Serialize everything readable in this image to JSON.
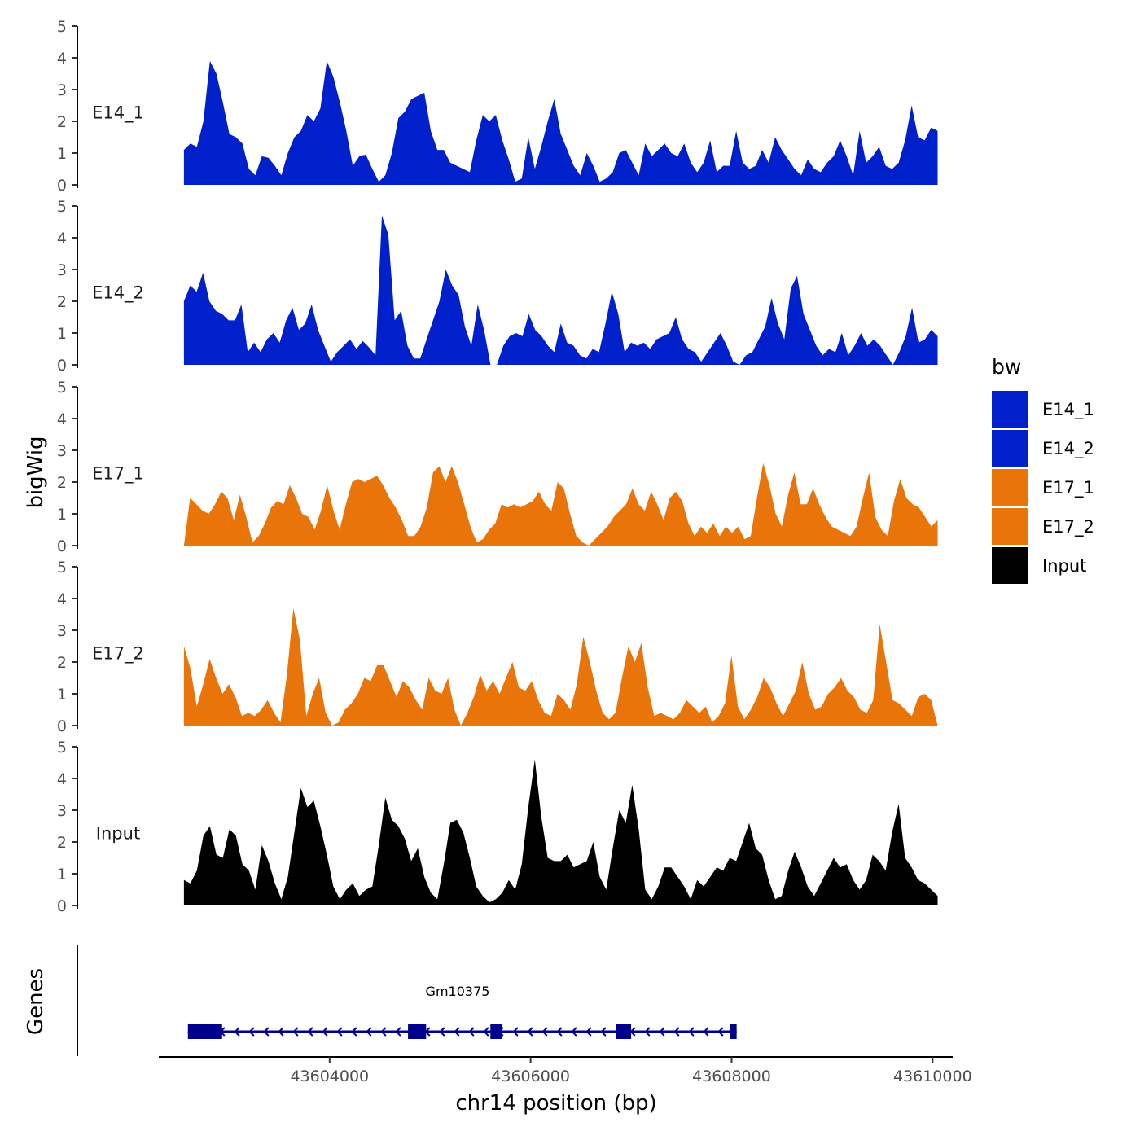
{
  "chart_data": {
    "type": "area",
    "xlabel": "chr14 position (bp)",
    "ylabel": "bigWig",
    "genes_label": "Genes",
    "xlim": [
      43602300,
      43610200
    ],
    "ylim": [
      0,
      5
    ],
    "y_ticks": [
      0,
      1,
      2,
      3,
      4,
      5
    ],
    "x_ticks": [
      43604000,
      43606000,
      43608000,
      43610000
    ],
    "x_tick_labels": [
      "43604000",
      "43606000",
      "43608000",
      "43610000"
    ],
    "legend": {
      "title": "bw",
      "entries": [
        {
          "label": "E14_1",
          "color": "#0020CC"
        },
        {
          "label": "E14_2",
          "color": "#0020CC"
        },
        {
          "label": "E17_1",
          "color": "#E8740A"
        },
        {
          "label": "E17_2",
          "color": "#E8740A"
        },
        {
          "label": "Input",
          "color": "#000000"
        }
      ]
    },
    "tracks": [
      {
        "name": "E14_1",
        "color": "#0020CC",
        "x_start": 43602550,
        "x_end": 43610050,
        "values": [
          1.1,
          1.3,
          1.2,
          2.0,
          3.9,
          3.5,
          2.6,
          1.6,
          1.5,
          1.3,
          0.5,
          0.3,
          0.9,
          0.85,
          0.6,
          0.3,
          1.0,
          1.5,
          1.7,
          2.2,
          2.0,
          2.4,
          3.9,
          3.4,
          2.6,
          1.7,
          0.6,
          0.9,
          0.95,
          0.5,
          0.1,
          0.3,
          1.0,
          2.1,
          2.3,
          2.7,
          2.8,
          2.9,
          1.7,
          1.1,
          1.1,
          0.7,
          0.6,
          0.5,
          0.4,
          1.4,
          2.2,
          2.0,
          2.2,
          1.4,
          0.8,
          0.1,
          0.2,
          1.5,
          0.5,
          1.2,
          2.0,
          2.7,
          1.6,
          1.1,
          0.6,
          0.3,
          1.0,
          0.6,
          0.1,
          0.2,
          0.4,
          1.0,
          1.1,
          0.7,
          0.3,
          1.3,
          0.9,
          1.1,
          1.3,
          1.0,
          0.9,
          1.3,
          0.7,
          0.4,
          0.7,
          1.4,
          0.4,
          0.6,
          0.6,
          1.7,
          0.7,
          0.5,
          0.6,
          1.1,
          0.7,
          1.5,
          1.1,
          0.8,
          0.5,
          0.3,
          0.8,
          0.5,
          0.4,
          0.7,
          0.9,
          1.4,
          0.9,
          0.3,
          1.7,
          0.7,
          0.9,
          1.2,
          0.6,
          0.5,
          0.7,
          1.4,
          2.5,
          1.5,
          1.4,
          1.8,
          1.7
        ]
      },
      {
        "name": "E14_2",
        "color": "#0020CC",
        "x_start": 43602550,
        "x_end": 43610050,
        "values": [
          2.0,
          2.5,
          2.3,
          2.9,
          2.0,
          1.7,
          1.6,
          1.4,
          1.4,
          1.9,
          0.4,
          0.7,
          0.4,
          0.8,
          1.0,
          0.7,
          1.4,
          1.8,
          1.1,
          1.3,
          1.9,
          1.1,
          0.6,
          0.1,
          0.4,
          0.6,
          0.8,
          0.5,
          0.75,
          0.55,
          0.3,
          4.7,
          4.1,
          1.4,
          1.7,
          0.6,
          0.2,
          0.2,
          0.8,
          1.4,
          2.0,
          3.0,
          2.5,
          2.2,
          1.2,
          0.6,
          1.9,
          1.1,
          0.0,
          0.0,
          0.6,
          0.9,
          1.0,
          0.9,
          1.6,
          1.1,
          0.9,
          0.6,
          0.4,
          1.3,
          0.7,
          0.6,
          0.3,
          0.2,
          0.5,
          0.4,
          1.3,
          2.3,
          1.6,
          0.4,
          0.7,
          0.6,
          0.7,
          0.5,
          0.8,
          0.9,
          1.0,
          1.5,
          0.8,
          0.5,
          0.4,
          0.1,
          0.4,
          0.7,
          1.0,
          0.6,
          0.1,
          0.0,
          0.3,
          0.4,
          0.8,
          1.2,
          2.1,
          1.3,
          0.8,
          2.4,
          2.8,
          1.6,
          1.1,
          0.6,
          0.3,
          0.5,
          0.4,
          1.0,
          0.3,
          0.6,
          1.0,
          0.6,
          0.8,
          0.6,
          0.3,
          0.0,
          0.4,
          0.9,
          1.8,
          0.7,
          0.8,
          1.1,
          0.9
        ]
      },
      {
        "name": "E17_1",
        "color": "#E8740A",
        "x_start": 43602550,
        "x_end": 43610050,
        "values": [
          0.0,
          1.5,
          1.3,
          1.1,
          1.0,
          1.3,
          1.7,
          1.5,
          0.8,
          1.6,
          0.9,
          0.1,
          0.3,
          0.7,
          1.2,
          1.4,
          1.3,
          1.9,
          1.5,
          1.0,
          0.9,
          0.5,
          1.1,
          1.9,
          1.1,
          0.5,
          1.3,
          2.0,
          2.1,
          2.0,
          2.1,
          2.2,
          1.9,
          1.5,
          1.2,
          0.8,
          0.3,
          0.3,
          0.6,
          1.2,
          2.3,
          2.5,
          2.0,
          2.5,
          2.0,
          1.3,
          0.6,
          0.1,
          0.2,
          0.5,
          0.7,
          1.3,
          1.2,
          1.3,
          1.2,
          1.3,
          1.4,
          1.7,
          1.3,
          1.1,
          2.0,
          1.8,
          1.0,
          0.3,
          0.1,
          0.0,
          0.2,
          0.4,
          0.6,
          0.9,
          1.1,
          1.3,
          1.8,
          1.3,
          1.1,
          1.7,
          1.3,
          0.8,
          1.5,
          1.7,
          1.4,
          0.7,
          0.3,
          0.6,
          0.4,
          0.7,
          0.3,
          0.6,
          0.4,
          0.6,
          0.2,
          0.3,
          1.5,
          2.6,
          1.9,
          1.0,
          0.6,
          1.6,
          2.3,
          1.3,
          1.3,
          1.8,
          1.3,
          0.9,
          0.6,
          0.5,
          0.4,
          0.3,
          0.6,
          1.5,
          2.3,
          0.9,
          0.5,
          0.3,
          1.4,
          2.1,
          1.5,
          1.3,
          1.2,
          0.9,
          0.6,
          0.8
        ]
      },
      {
        "name": "E17_2",
        "color": "#E8740A",
        "x_start": 43602550,
        "x_end": 43610050,
        "values": [
          2.5,
          1.8,
          0.6,
          1.3,
          2.1,
          1.5,
          1.0,
          1.3,
          0.9,
          0.3,
          0.4,
          0.3,
          0.5,
          0.8,
          0.4,
          0.1,
          1.6,
          3.7,
          2.7,
          0.3,
          1.0,
          1.5,
          0.4,
          0.0,
          0.1,
          0.5,
          0.7,
          1.0,
          1.5,
          1.4,
          1.9,
          1.9,
          1.4,
          0.9,
          1.4,
          1.2,
          0.8,
          0.5,
          1.5,
          1.1,
          1.0,
          1.5,
          0.5,
          0.0,
          0.4,
          0.9,
          1.6,
          1.1,
          1.4,
          1.0,
          1.5,
          2.0,
          1.2,
          1.1,
          1.4,
          0.8,
          0.4,
          0.3,
          1.0,
          0.8,
          0.5,
          1.3,
          2.8,
          2.0,
          1.1,
          0.4,
          0.2,
          0.4,
          1.5,
          2.5,
          2.0,
          2.6,
          1.2,
          0.3,
          0.4,
          0.3,
          0.2,
          0.4,
          0.8,
          0.6,
          0.4,
          0.6,
          0.1,
          0.3,
          0.7,
          2.2,
          0.6,
          0.2,
          0.5,
          0.9,
          1.5,
          1.2,
          0.7,
          0.3,
          0.7,
          1.1,
          2.0,
          1.0,
          0.5,
          0.6,
          1.0,
          1.2,
          1.5,
          1.1,
          0.9,
          0.5,
          0.4,
          0.8,
          3.2,
          2.0,
          0.8,
          0.7,
          0.5,
          0.3,
          0.9,
          1.0,
          0.8,
          0.0
        ]
      },
      {
        "name": "Input",
        "color": "#000000",
        "x_start": 43602550,
        "x_end": 43610050,
        "values": [
          0.8,
          0.7,
          1.1,
          2.2,
          2.5,
          1.6,
          1.5,
          2.4,
          2.2,
          1.3,
          1.1,
          0.5,
          1.9,
          1.4,
          0.7,
          0.2,
          0.9,
          2.3,
          3.7,
          3.1,
          3.3,
          2.5,
          1.6,
          0.6,
          0.2,
          0.5,
          0.7,
          0.3,
          0.5,
          0.6,
          1.9,
          3.4,
          2.7,
          2.5,
          2.1,
          1.4,
          1.8,
          0.9,
          0.4,
          0.2,
          1.3,
          2.6,
          2.7,
          2.3,
          1.5,
          0.6,
          0.3,
          0.1,
          0.2,
          0.4,
          0.8,
          0.5,
          1.3,
          3.1,
          4.6,
          2.8,
          1.5,
          1.4,
          1.4,
          1.6,
          1.2,
          1.3,
          1.4,
          2.0,
          0.9,
          0.5,
          1.8,
          3.0,
          2.6,
          3.8,
          2.4,
          0.5,
          0.2,
          0.6,
          1.2,
          1.2,
          0.9,
          0.6,
          0.2,
          0.8,
          0.6,
          0.9,
          1.2,
          1.1,
          1.5,
          1.4,
          2.0,
          2.6,
          1.8,
          1.6,
          0.8,
          0.2,
          0.3,
          1.1,
          1.7,
          1.2,
          0.6,
          0.3,
          0.7,
          1.1,
          1.5,
          1.2,
          1.3,
          0.8,
          0.5,
          0.8,
          1.6,
          1.4,
          1.1,
          2.3,
          3.2,
          1.5,
          1.2,
          0.8,
          0.7,
          0.5,
          0.3
        ]
      }
    ],
    "gene": {
      "name": "Gm10375",
      "start": 43602590,
      "end": 43608050,
      "strand": "-",
      "color": "#00008B",
      "exons": [
        [
          43602590,
          43602930
        ],
        [
          43604780,
          43604960
        ],
        [
          43605600,
          43605720
        ],
        [
          43606850,
          43607000
        ],
        [
          43607980,
          43608050
        ]
      ]
    }
  }
}
